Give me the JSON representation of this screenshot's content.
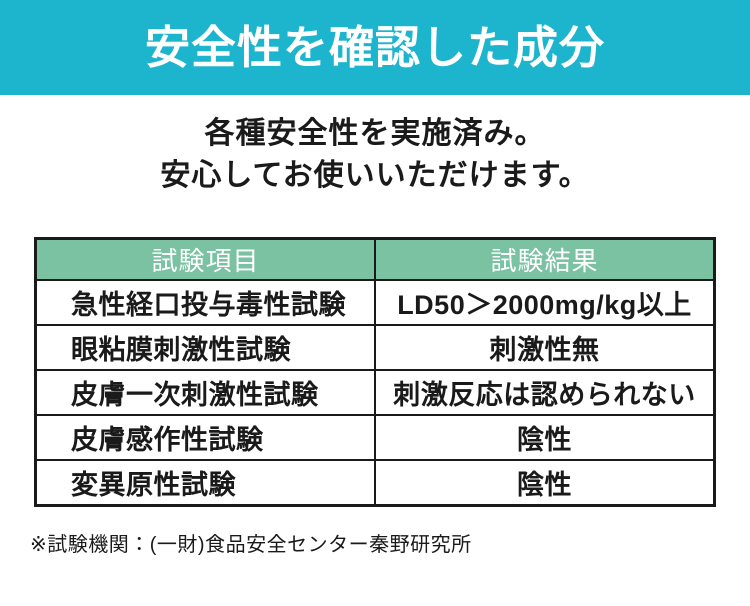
{
  "colors": {
    "banner_bg": "#1cb5cd",
    "table_header_bg": "#7ac2a1",
    "header_text": "#ffffff",
    "body_text": "#1a1a1a",
    "table_border": "#1a1a1a"
  },
  "banner": {
    "title": "安全性を確認した成分"
  },
  "intro": {
    "line1": "各種安全性を実施済み。",
    "line2": "安心してお使いいただけます。"
  },
  "table": {
    "columns": [
      "試験項目",
      "試験結果"
    ],
    "rows": [
      {
        "item": "急性経口投与毒性試験",
        "result": "LD50＞2000mg/kg以上"
      },
      {
        "item": "眼粘膜刺激性試験",
        "result": "刺激性無"
      },
      {
        "item": "皮膚一次刺激性試験",
        "result": "刺激反応は認められない"
      },
      {
        "item": "皮膚感作性試験",
        "result": "陰性"
      },
      {
        "item": "変異原性試験",
        "result": "陰性"
      }
    ]
  },
  "footnote": "※試験機関：(一財)食品安全センター秦野研究所"
}
